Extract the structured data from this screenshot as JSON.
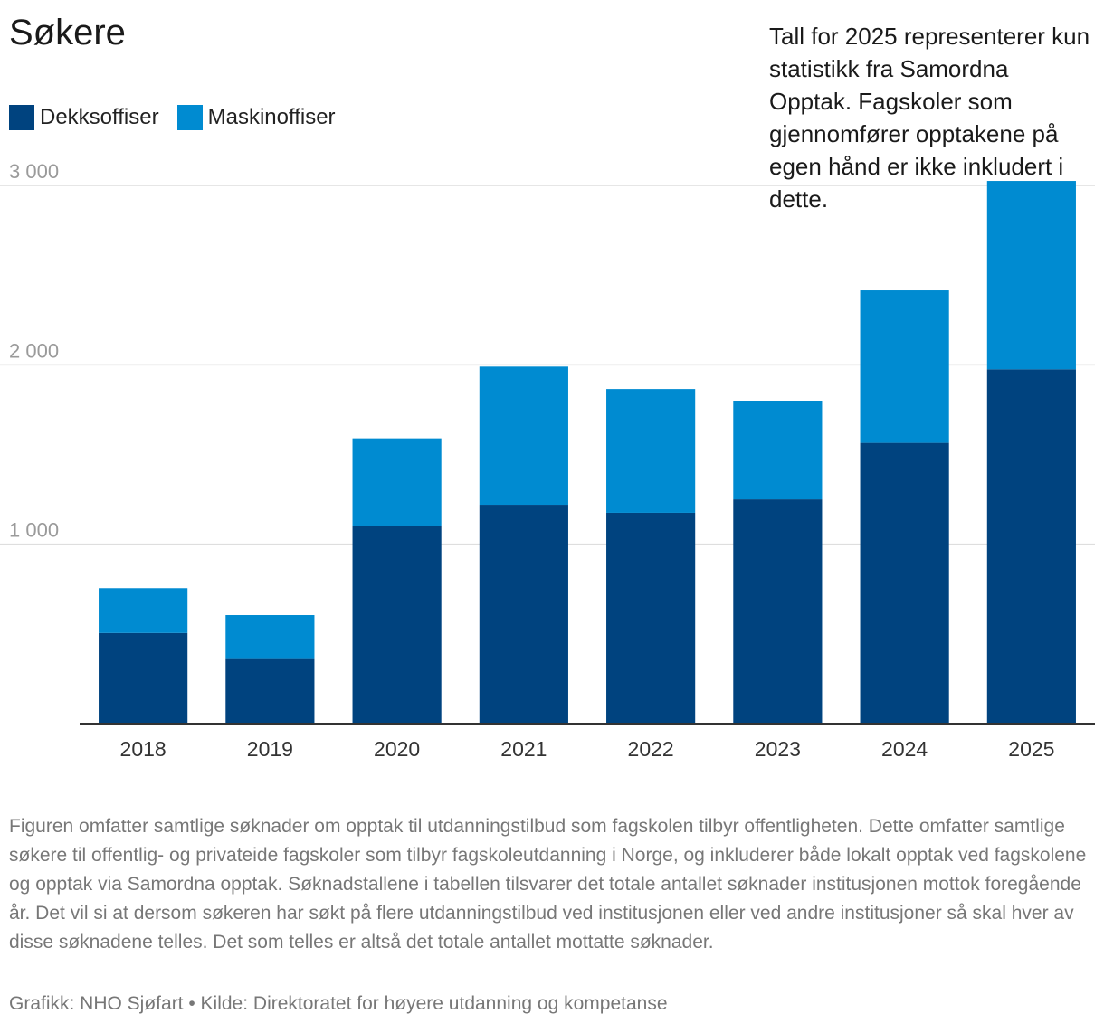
{
  "title": "Søkere",
  "note": "Tall for 2025 representerer kun statistikk fra Samordna Opptak. Fagskoler som gjennomfører opptakene på egen hånd er ikke inkludert i dette.",
  "legend": [
    {
      "label": "Dekksoffiser",
      "color": "#00437f"
    },
    {
      "label": "Maskinoffiser",
      "color": "#008bd1"
    }
  ],
  "footnote": "Figuren omfatter samtlige søknader om opptak til utdanningstilbud som fagskolen tilbyr offentligheten. Dette omfatter samtlige søkere til offentlig- og privateide fagskoler som tilbyr fagskoleutdanning i Norge, og inkluderer både lokalt opptak ved fagskolene og opptak via Samordna opptak. Søknadstallene i tabellen tilsvarer det totale antallet søknader institusjonen mottok foregående år. Det vil si at dersom søkeren har søkt på flere utdanningstilbud ved institusjonen eller ved andre institusjoner så skal hver av disse søknadene telles. Det som telles er altså det totale antallet mottatte søknader.",
  "source": "Grafikk: NHO Sjøfart • Kilde: Direktoratet for høyere utdanning og kompetanse",
  "chart_data": {
    "type": "bar",
    "stacked": true,
    "title": "Søkere",
    "categories": [
      "2018",
      "2019",
      "2020",
      "2021",
      "2022",
      "2023",
      "2024",
      "2025"
    ],
    "series": [
      {
        "name": "Dekksoffiser",
        "color": "#00437f",
        "values": [
          505,
          365,
          1100,
          1220,
          1175,
          1250,
          1565,
          1975
        ]
      },
      {
        "name": "Maskinoffiser",
        "color": "#008bd1",
        "values": [
          250,
          240,
          490,
          770,
          690,
          550,
          850,
          1050
        ]
      }
    ],
    "yticks": [
      1000,
      2000,
      3000
    ],
    "ytick_labels": [
      "1 000",
      "2 000",
      "3 000"
    ],
    "ylim": [
      0,
      3000
    ],
    "grid": true,
    "legend": "top-left",
    "xlabel": "",
    "ylabel": ""
  }
}
